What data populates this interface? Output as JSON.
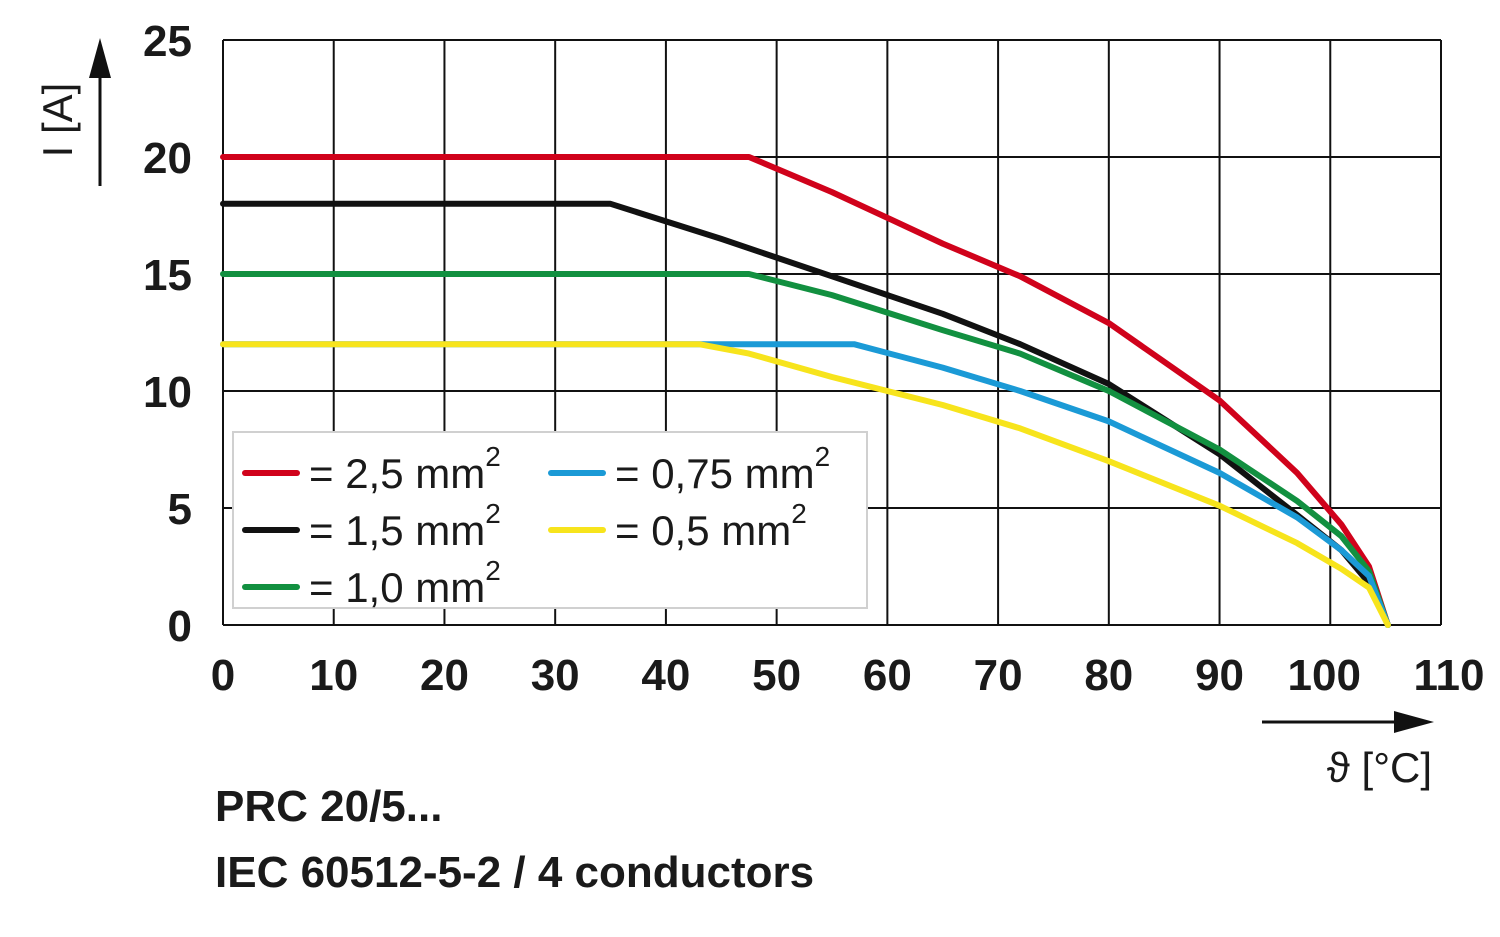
{
  "chart_data": {
    "type": "line",
    "xlabel": "ϑ [°C]",
    "ylabel": "I [A]",
    "xlim": [
      0,
      110
    ],
    "ylim": [
      0,
      25
    ],
    "xticks": [
      "0",
      "10",
      "20",
      "30",
      "40",
      "50",
      "60",
      "70",
      "80",
      "90",
      "100",
      "110"
    ],
    "yticks": [
      "0",
      "5",
      "10",
      "15",
      "20",
      "25"
    ],
    "grid": true,
    "legend_position": "bottom-left",
    "series": [
      {
        "name": "= 2,5 mm",
        "sup": "2",
        "color": "#d0021b",
        "x": [
          0,
          47.5,
          55,
          65,
          72,
          80,
          90,
          97,
          101,
          103.5,
          105.2
        ],
        "y": [
          20,
          20,
          18.5,
          16.3,
          14.9,
          12.9,
          9.6,
          6.5,
          4.3,
          2.5,
          0
        ]
      },
      {
        "name": "= 1,5 mm",
        "sup": "2",
        "color": "#111111",
        "x": [
          0,
          35,
          45,
          55,
          65,
          72,
          80,
          90,
          97,
          101,
          103.5,
          105.2
        ],
        "y": [
          18,
          18,
          16.5,
          14.9,
          13.3,
          12,
          10.3,
          7.3,
          4.7,
          3.2,
          1.8,
          0
        ]
      },
      {
        "name": "= 1,0 mm",
        "sup": "2",
        "color": "#129040",
        "x": [
          0,
          47.5,
          55,
          65,
          72,
          80,
          90,
          97,
          101,
          103.5,
          105.2
        ],
        "y": [
          15,
          15,
          14.1,
          12.6,
          11.6,
          10,
          7.5,
          5.3,
          3.8,
          2.3,
          0
        ]
      },
      {
        "name": "= 0,75 mm",
        "sup": "2",
        "color": "#1b9ad6",
        "x": [
          0,
          57,
          65,
          72,
          80,
          90,
          97,
          101,
          103.5,
          105.2
        ],
        "y": [
          12,
          12,
          11,
          10,
          8.7,
          6.5,
          4.6,
          3.2,
          2.1,
          0
        ]
      },
      {
        "name": "= 0,5 mm",
        "sup": "2",
        "color": "#f7e41c",
        "x": [
          0,
          43,
          47.5,
          55,
          65,
          72,
          80,
          90,
          97,
          101,
          103.5,
          105.2
        ],
        "y": [
          12,
          12,
          11.6,
          10.6,
          9.4,
          8.4,
          7,
          5.1,
          3.5,
          2.4,
          1.6,
          0
        ]
      }
    ]
  },
  "captions": {
    "line1": "PRC 20/5...",
    "line2": "IEC 60512-5-2 / 4 conductors"
  }
}
